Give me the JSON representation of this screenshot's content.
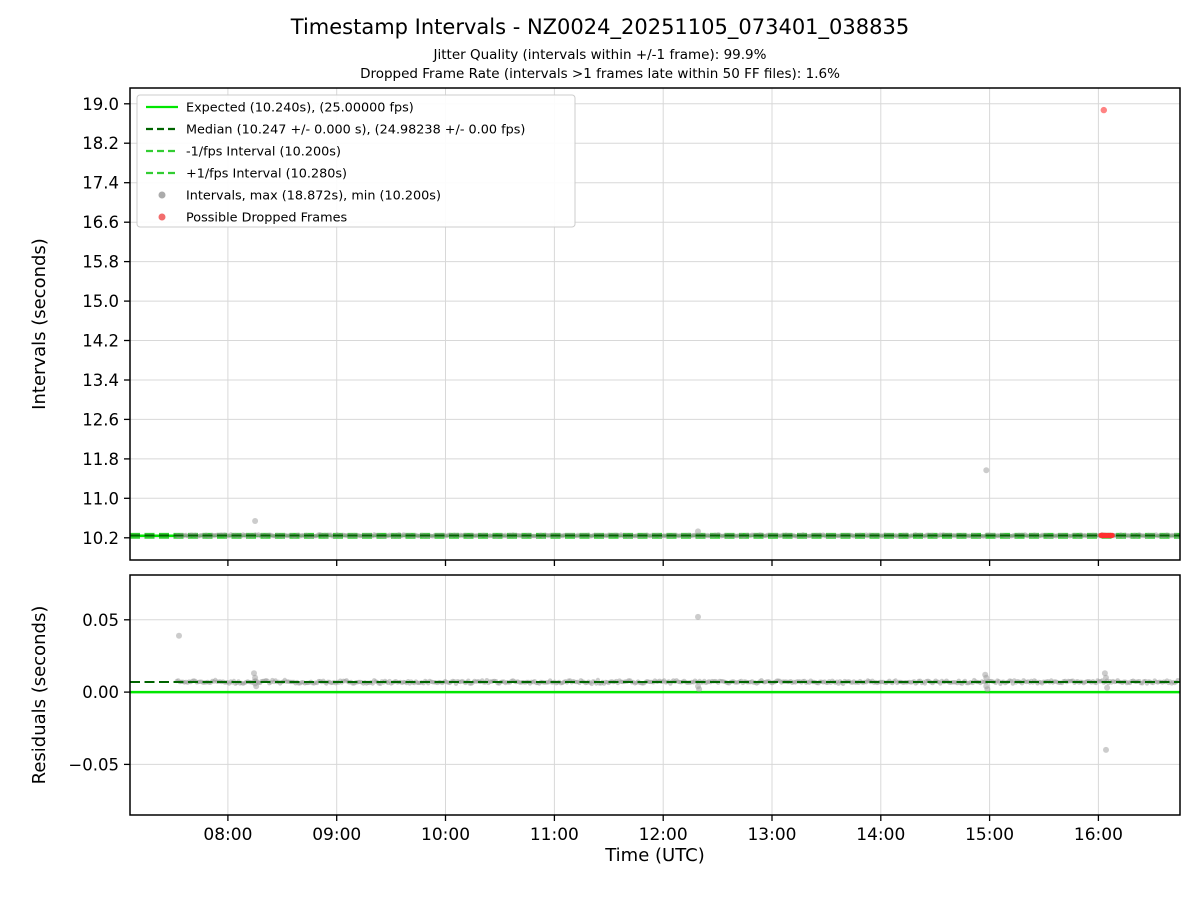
{
  "header": {
    "title": "Timestamp Intervals - NZ0024_20251105_073401_038835",
    "subtitle1": "Jitter Quality (intervals within +/-1 frame): 99.9%",
    "subtitle2": "Dropped Frame Rate (intervals >1 frames late within 50 FF files): 1.6%"
  },
  "stats": {
    "expected_interval_s": 10.24,
    "expected_fps": 25.0,
    "median_interval_s": 10.247,
    "median_fps": 24.98238,
    "minus_one_fps_interval_s": 10.2,
    "plus_one_fps_interval_s": 10.28,
    "max_interval_s": 18.872,
    "min_interval_s": 10.2,
    "jitter_quality_pct": 99.9,
    "dropped_frame_rate_pct": 1.6
  },
  "colors": {
    "expected": "#00e600",
    "fps_bounds": "#32cd32",
    "median": "#006400",
    "intervals_gray": "#9a9a9a",
    "dropped_red": "#ff3030",
    "grid": "#d8d8d8"
  },
  "chart_x": {
    "lim": [
      7.1,
      16.75
    ],
    "tick_hours": [
      8,
      9,
      10,
      11,
      12,
      13,
      14,
      15,
      16
    ],
    "tick_labels": [
      "08:00",
      "09:00",
      "10:00",
      "11:00",
      "12:00",
      "13:00",
      "14:00",
      "15:00",
      "16:00"
    ],
    "label": "Time (UTC)"
  },
  "chart_data": [
    {
      "type": "scatter",
      "name": "intervals",
      "ylabel": "Intervals (seconds)",
      "ylim": [
        9.75,
        19.32
      ],
      "yticks": [
        10.2,
        11.0,
        11.8,
        12.6,
        13.4,
        14.2,
        15.0,
        15.8,
        16.6,
        17.4,
        18.2,
        19.0
      ],
      "decimals": 1,
      "lines": [
        {
          "name": "expected-line",
          "label": "Expected (10.240s), (25.00000 fps)",
          "value": 10.24,
          "style": "solid",
          "color": "#00e600",
          "width": 2.5
        },
        {
          "name": "median-line",
          "label": "Median (10.247 +/- 0.000 s), (24.98238 +/- 0.00 fps)",
          "value": 10.247,
          "style": "dashed",
          "color": "#006400",
          "width": 2,
          "on_top": true
        },
        {
          "name": "minus-one-fps-line",
          "label": "-1/fps Interval (10.200s)",
          "value": 10.2,
          "style": "dashed",
          "color": "#32cd32",
          "width": 2
        },
        {
          "name": "plus-one-fps-line",
          "label": "+1/fps Interval (10.280s)",
          "value": 10.28,
          "style": "dashed",
          "color": "#32cd32",
          "width": 2
        }
      ],
      "band": {
        "x_start": 7.53,
        "x_end": 16.73,
        "value": 10.247,
        "jitter": 0.022,
        "count": 650
      },
      "gray_outliers": [
        [
          8.25,
          10.54
        ],
        [
          12.32,
          10.33
        ],
        [
          14.97,
          11.57
        ]
      ],
      "red_band": {
        "x_start": 16.02,
        "x_end": 16.13,
        "value": 10.247,
        "jitter": 0.012,
        "count": 55
      },
      "red_points": [
        [
          16.05,
          18.872
        ]
      ],
      "legend": [
        {
          "marker": "line-solid",
          "color": "#00e600",
          "label": "Expected (10.240s), (25.00000 fps)"
        },
        {
          "marker": "line-dashed",
          "color": "#006400",
          "label": "Median (10.247 +/- 0.000 s), (24.98238 +/- 0.00 fps)"
        },
        {
          "marker": "line-dashed",
          "color": "#32cd32",
          "label": "-1/fps Interval (10.200s)"
        },
        {
          "marker": "line-dashed",
          "color": "#32cd32",
          "label": "+1/fps Interval (10.280s)"
        },
        {
          "marker": "dot",
          "color": "#ababab",
          "label": "Intervals, max (18.872s), min (10.200s)"
        },
        {
          "marker": "dot",
          "color": "#f26d6d",
          "label": "Possible Dropped Frames"
        }
      ]
    },
    {
      "type": "scatter",
      "name": "residuals",
      "ylabel": "Residuals (seconds)",
      "ylim": [
        -0.085,
        0.081
      ],
      "yticks": [
        -0.05,
        0.0,
        0.05
      ],
      "decimals": 2,
      "lines": [
        {
          "name": "zero-residual-line",
          "value": 0.0,
          "style": "solid",
          "color": "#00e600",
          "width": 2.5
        },
        {
          "name": "median-residual-line",
          "value": 0.007,
          "style": "dashed",
          "color": "#006400",
          "width": 2,
          "on_top": true
        }
      ],
      "band": {
        "x_start": 7.53,
        "x_end": 16.73,
        "value": 0.007,
        "jitter": 0.0014,
        "count": 650
      },
      "gray_outliers": [
        [
          7.55,
          0.039
        ],
        [
          8.24,
          0.013
        ],
        [
          8.25,
          0.01
        ],
        [
          8.25,
          0.006
        ],
        [
          8.26,
          0.004
        ],
        [
          12.32,
          0.052
        ],
        [
          12.32,
          0.004
        ],
        [
          12.33,
          0.002
        ],
        [
          14.96,
          0.012
        ],
        [
          14.97,
          0.01
        ],
        [
          14.97,
          0.004
        ],
        [
          14.98,
          0.002
        ],
        [
          16.06,
          0.013
        ],
        [
          16.07,
          0.01
        ],
        [
          16.08,
          0.003
        ],
        [
          16.07,
          -0.04
        ]
      ],
      "red_band": null,
      "red_points": []
    }
  ]
}
